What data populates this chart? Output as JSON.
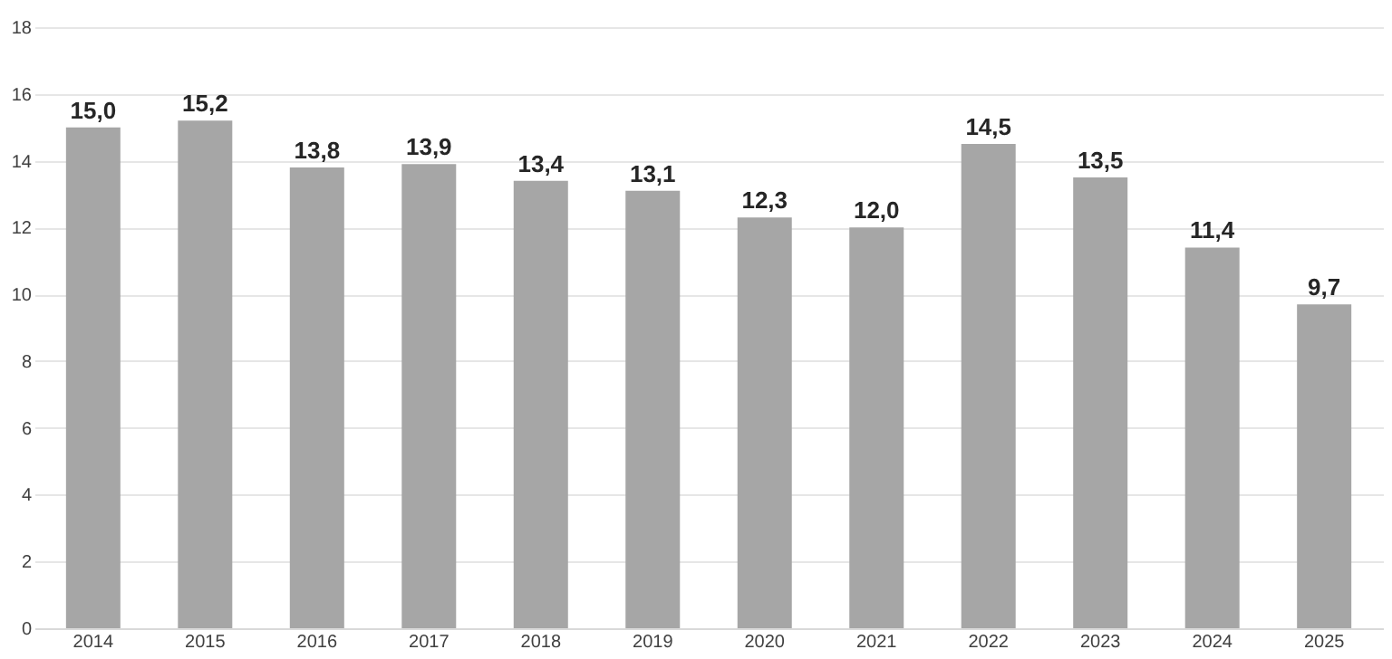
{
  "chart_data": {
    "type": "bar",
    "categories": [
      "2014",
      "2015",
      "2016",
      "2017",
      "2018",
      "2019",
      "2020",
      "2021",
      "2022",
      "2023",
      "2024",
      "2025"
    ],
    "values": [
      15.0,
      15.2,
      13.8,
      13.9,
      13.4,
      13.1,
      12.3,
      12.0,
      14.5,
      13.5,
      11.4,
      9.7
    ],
    "value_labels": [
      "15,0",
      "15,2",
      "13,8",
      "13,9",
      "13,4",
      "13,1",
      "12,3",
      "12,0",
      "14,5",
      "13,5",
      "11,4",
      "9,7"
    ],
    "color": "#a6a6a6",
    "ylim": [
      0,
      18
    ],
    "yticks": [
      0,
      2,
      4,
      6,
      8,
      10,
      12,
      14,
      16,
      18
    ],
    "grid": "y"
  }
}
